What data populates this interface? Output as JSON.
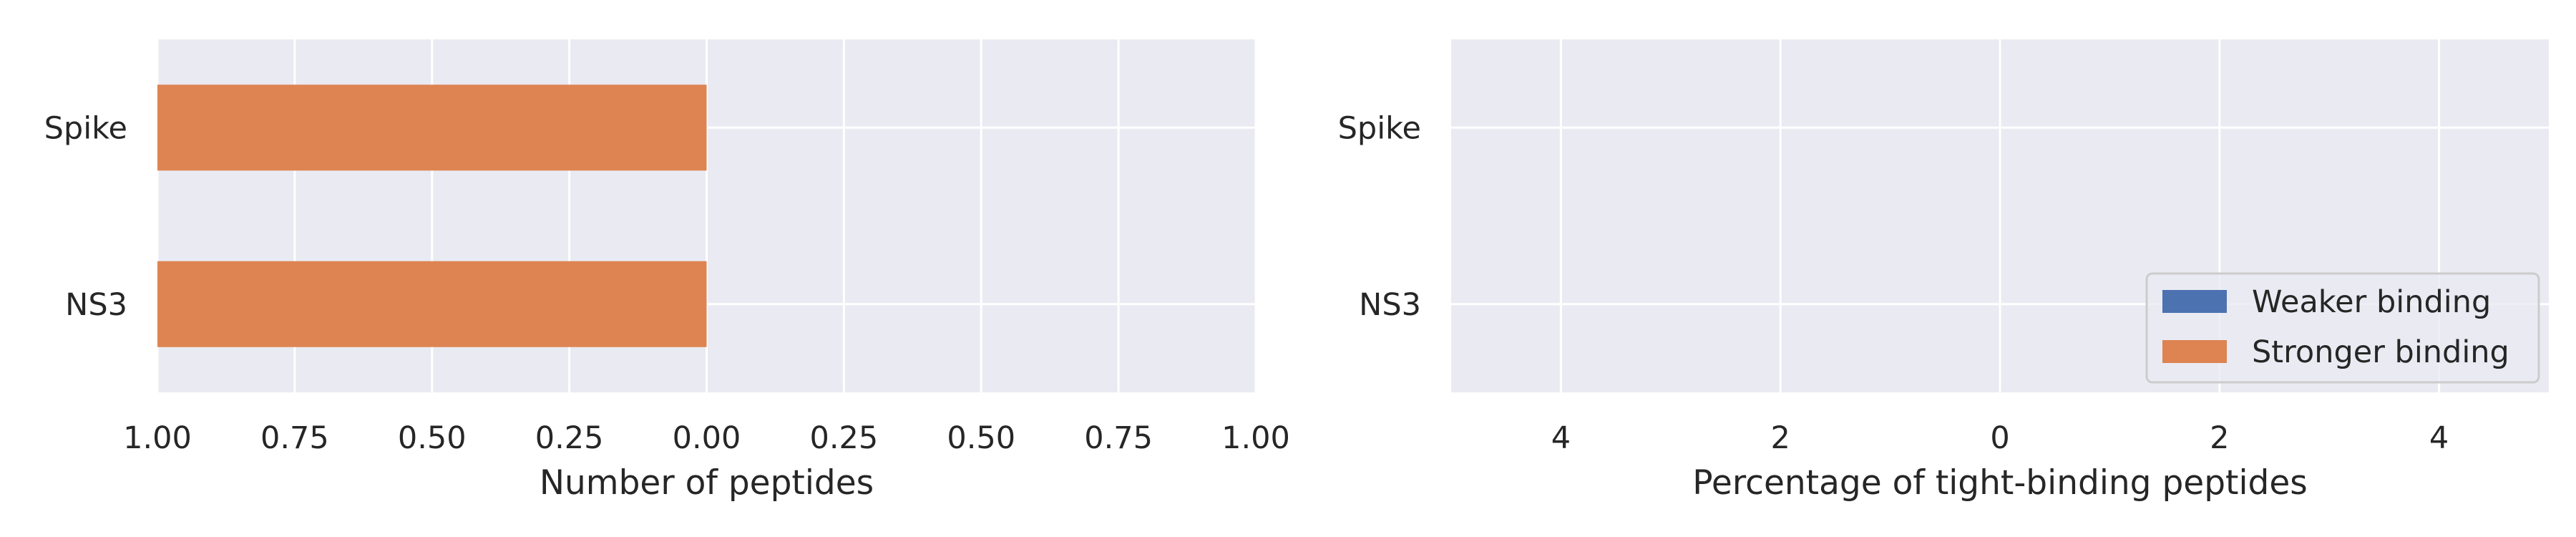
{
  "colors": {
    "plot_background": "#eaeaf2",
    "grid": "#ffffff",
    "weaker": "#4c72b0",
    "stronger": "#dd8452",
    "text": "#262626"
  },
  "chart_data": [
    {
      "type": "bar",
      "orientation": "horizontal",
      "stacked": "diverging",
      "categories": [
        "Spike",
        "NS3"
      ],
      "xlabel": "Number of peptides",
      "xlim": [
        -1.0,
        1.0
      ],
      "xticks": [
        -1.0,
        -0.75,
        -0.5,
        -0.25,
        0.0,
        0.25,
        0.5,
        0.75,
        1.0
      ],
      "xtick_labels": [
        "1.00",
        "0.75",
        "0.50",
        "0.25",
        "0.00",
        "0.25",
        "0.50",
        "0.75",
        "1.00"
      ],
      "series": [
        {
          "key": "stronger",
          "values": [
            -1.0,
            -1.0
          ]
        }
      ],
      "grid": true
    },
    {
      "type": "bar",
      "orientation": "horizontal",
      "stacked": "diverging",
      "categories": [
        "Spike",
        "NS3"
      ],
      "xlabel": "Percentage of tight-binding peptides",
      "xlim": [
        -5.0,
        5.0
      ],
      "xticks": [
        -4,
        -2,
        0,
        2,
        4
      ],
      "xtick_labels": [
        "4",
        "2",
        "0",
        "2",
        "4"
      ],
      "series": [
        {
          "name": "Weaker binding",
          "key": "weaker",
          "values": [
            0,
            0
          ]
        },
        {
          "name": "Stronger binding",
          "key": "stronger",
          "values": [
            0,
            0
          ]
        }
      ],
      "legend": {
        "position": "lower right",
        "entries": [
          {
            "label": "Weaker binding",
            "key": "weaker"
          },
          {
            "label": "Stronger binding",
            "key": "stronger"
          }
        ]
      },
      "grid": true
    }
  ]
}
